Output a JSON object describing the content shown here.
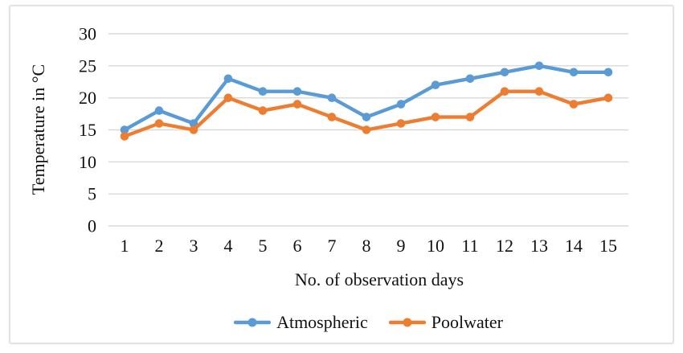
{
  "chart_data": {
    "type": "line",
    "x": [
      "1",
      "2",
      "3",
      "4",
      "5",
      "6",
      "7",
      "8",
      "9",
      "10",
      "11",
      "12",
      "13",
      "14",
      "15"
    ],
    "series": [
      {
        "name": "Atmospheric",
        "color": "#5B9BD5",
        "values": [
          15,
          18,
          16,
          23,
          21,
          21,
          20,
          17,
          19,
          22,
          23,
          24,
          25,
          24,
          24
        ]
      },
      {
        "name": "Poolwater",
        "color": "#ED7D31",
        "values": [
          14,
          16,
          15,
          20,
          18,
          19,
          17,
          15,
          16,
          17,
          17,
          21,
          21,
          19,
          20
        ]
      }
    ],
    "xlabel": "No. of observation days",
    "ylabel": "Temperature in °C",
    "ylim": [
      0,
      30
    ],
    "y_ticks": [
      0,
      5,
      10,
      15,
      20,
      25,
      30
    ],
    "grid": "horizontal",
    "gridline_color": "#D9D9D9",
    "text_color": "#111111",
    "legend_position": "bottom",
    "marker": "circle"
  }
}
